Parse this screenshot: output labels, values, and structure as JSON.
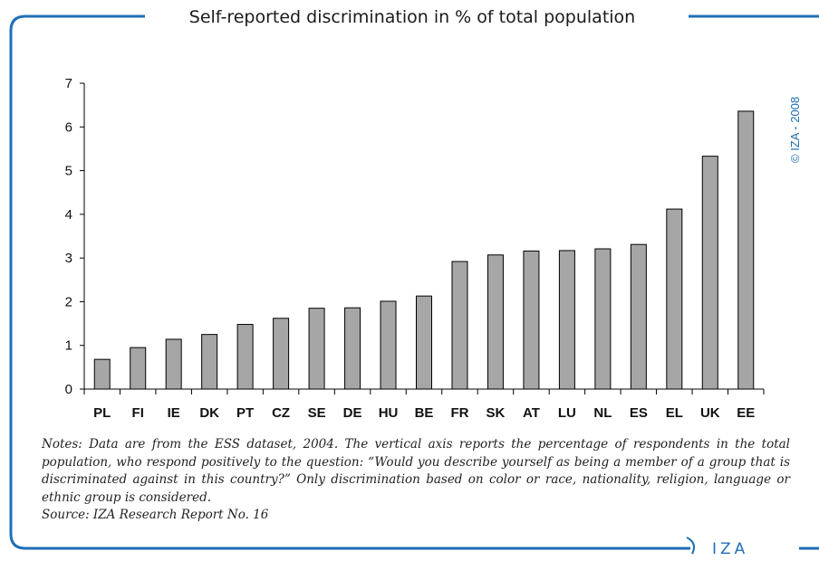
{
  "title": "Self-reported discrimination in % of total population",
  "copyright": "© IZA - 2008",
  "notes": "Notes: Data are from the ESS dataset, 2004. The vertical axis reports the percentage of respondents in the total population, who respond positively to the question: “Would you describe yourself as being a member of a group that is discriminated against in this country?” Only discrimination based on color or race, nationality, religion, language or ethnic group is considered.",
  "source": "Source: IZA Research Report No. 16",
  "logo": "IZA",
  "colors": {
    "frame": "#1f6fb6",
    "bar_fill": "#a6a6a6",
    "bar_stroke": "#000000"
  },
  "chart_data": {
    "type": "bar",
    "title": "Self-reported discrimination in % of total population",
    "xlabel": "",
    "ylabel": "",
    "ylim": [
      0,
      7
    ],
    "yticks": [
      0,
      1,
      2,
      3,
      4,
      5,
      6,
      7
    ],
    "grid": false,
    "categories": [
      "PL",
      "FI",
      "IE",
      "DK",
      "PT",
      "CZ",
      "SE",
      "DE",
      "HU",
      "BE",
      "FR",
      "SK",
      "AT",
      "LU",
      "NL",
      "ES",
      "EL",
      "UK",
      "EE"
    ],
    "values": [
      0.68,
      0.95,
      1.14,
      1.25,
      1.48,
      1.62,
      1.85,
      1.86,
      2.01,
      2.13,
      2.92,
      3.07,
      3.16,
      3.17,
      3.21,
      3.31,
      4.12,
      5.33,
      6.36
    ]
  }
}
